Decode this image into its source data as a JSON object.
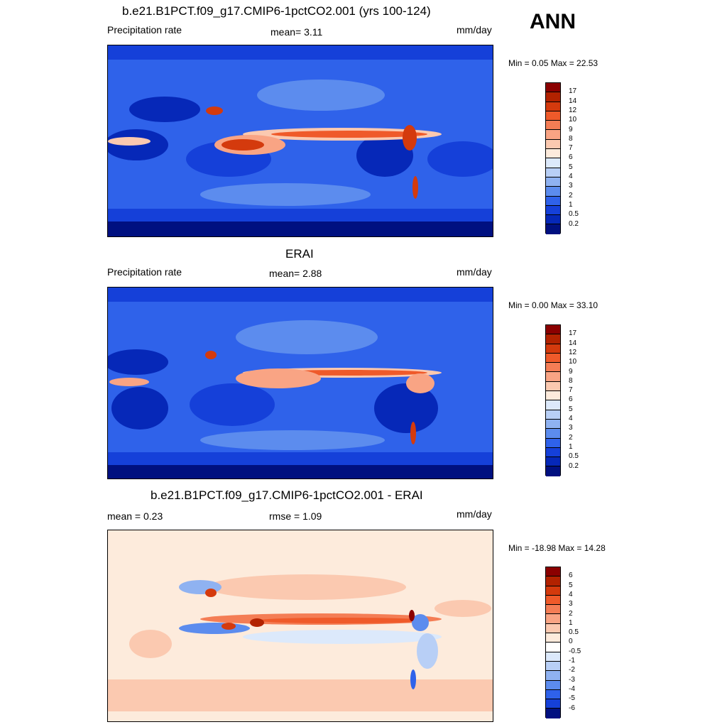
{
  "season": "ANN",
  "panels": [
    {
      "title": "b.e21.B1PCT.f09_g17.CMIP6-1pctCO2.001 (yrs 100-124)",
      "left_label": "Precipitation rate",
      "center_label": "mean=   3.11",
      "right_label": "mm/day",
      "minmax": "Min =   0.05 Max =  22.53",
      "kind": "abs"
    },
    {
      "title": "ERAI",
      "left_label": "Precipitation rate",
      "center_label": "mean=   2.88",
      "right_label": "mm/day",
      "minmax": "Min =   0.00 Max =  33.10",
      "kind": "abs"
    },
    {
      "title": "b.e21.B1PCT.f09_g17.CMIP6-1pctCO2.001 - ERAI",
      "left_label": "mean =   0.23",
      "center_label": "rmse =   1.09",
      "right_label": "mm/day",
      "minmax": "Min = -18.98 Max =  14.28",
      "kind": "diff"
    }
  ],
  "colorbars": {
    "abs": {
      "labels": [
        "17",
        "14",
        "12",
        "10",
        "9",
        "8",
        "7",
        "6",
        "5",
        "4",
        "3",
        "2",
        "1",
        "0.5",
        "0.2"
      ],
      "colors": [
        "#8b0000",
        "#b22200",
        "#d43a0d",
        "#ef5a2a",
        "#f47d55",
        "#f9a484",
        "#fbc9b0",
        "#fdebdc",
        "#dce9fb",
        "#b8cff6",
        "#8fb2f1",
        "#5c8cee",
        "#2f62ea",
        "#1540d9",
        "#0628b8",
        "#001080"
      ]
    },
    "diff": {
      "labels": [
        "6",
        "5",
        "4",
        "3",
        "2",
        "1",
        "0.5",
        "0",
        "-0.5",
        "-1",
        "-2",
        "-3",
        "-4",
        "-5",
        "-6"
      ],
      "colors": [
        "#8b0000",
        "#b22200",
        "#d43a0d",
        "#ef5a2a",
        "#f47d55",
        "#f9a484",
        "#fbc9b0",
        "#fdebdc",
        "#ffffff",
        "#dce9fb",
        "#b8cff6",
        "#8fb2f1",
        "#5c8cee",
        "#2f62ea",
        "#1540d9",
        "#001080"
      ]
    }
  }
}
